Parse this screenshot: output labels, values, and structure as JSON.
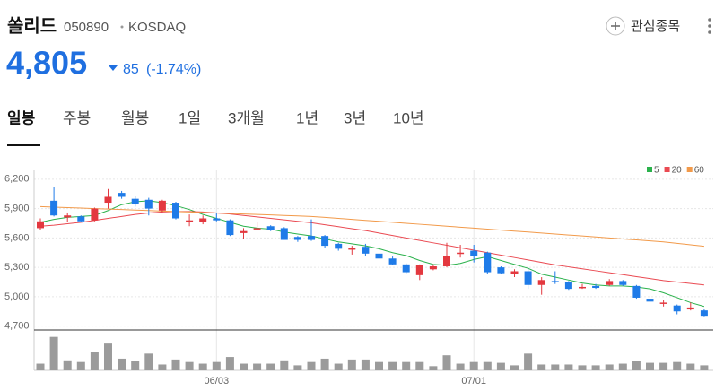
{
  "header": {
    "name": "쏠리드",
    "code": "050890",
    "market": "KOSDAQ",
    "watch_button": "관심종목"
  },
  "price": {
    "value": "4,805",
    "change": "85",
    "change_rate": "(-1.74%)"
  },
  "tabs": [
    "일봉",
    "주봉",
    "월봉",
    "1일",
    "3개월",
    "1년",
    "3년",
    "10년"
  ],
  "chart_data": {
    "type": "candlestick",
    "categories": [
      null,
      null,
      null,
      null,
      null,
      null,
      null,
      null,
      null,
      null,
      null,
      null,
      null,
      "06/03",
      null,
      null,
      null,
      null,
      null,
      null,
      null,
      null,
      null,
      null,
      null,
      null,
      null,
      null,
      null,
      null,
      null,
      null,
      "07/01",
      null,
      null,
      null,
      null,
      null,
      null,
      null,
      null,
      null,
      null,
      null,
      null,
      null,
      null,
      null,
      null,
      null
    ],
    "open": [
      5700,
      5980,
      5810,
      5820,
      5780,
      5960,
      6060,
      6000,
      5990,
      5880,
      5960,
      5760,
      5760,
      5800,
      5780,
      5650,
      5690,
      5720,
      5700,
      5610,
      5620,
      5620,
      5540,
      5480,
      5510,
      5440,
      5390,
      5330,
      5220,
      5280,
      5310,
      5440,
      5470,
      5450,
      5300,
      5230,
      5260,
      5120,
      5160,
      5150,
      5090,
      5110,
      5120,
      5160,
      5110,
      4980,
      4930,
      4910,
      4870,
      4860
    ],
    "high": [
      5800,
      6120,
      5860,
      5830,
      5910,
      6100,
      6080,
      6030,
      6010,
      5990,
      5970,
      5840,
      5830,
      5850,
      5790,
      5700,
      5760,
      5730,
      5710,
      5620,
      5790,
      5630,
      5550,
      5520,
      5540,
      5460,
      5410,
      5340,
      5330,
      5330,
      5550,
      5530,
      5530,
      5460,
      5310,
      5280,
      5300,
      5200,
      5260,
      5160,
      5130,
      5130,
      5180,
      5170,
      5120,
      5000,
      4970,
      4920,
      4940,
      4870
    ],
    "low": [
      5680,
      5820,
      5760,
      5760,
      5770,
      5900,
      6000,
      5920,
      5830,
      5860,
      5790,
      5720,
      5740,
      5770,
      5620,
      5590,
      5680,
      5670,
      5580,
      5560,
      5570,
      5500,
      5470,
      5430,
      5420,
      5370,
      5320,
      5240,
      5170,
      5270,
      5300,
      5400,
      5350,
      5230,
      5230,
      5200,
      5080,
      5020,
      5130,
      5070,
      5080,
      5080,
      5110,
      5110,
      4980,
      4880,
      4900,
      4820,
      4860,
      4800
    ],
    "close": [
      5770,
      5830,
      5830,
      5770,
      5900,
      6020,
      6020,
      5950,
      5900,
      5980,
      5800,
      5780,
      5800,
      5780,
      5630,
      5670,
      5700,
      5680,
      5580,
      5580,
      5580,
      5520,
      5490,
      5500,
      5440,
      5390,
      5330,
      5250,
      5320,
      5310,
      5420,
      5450,
      5420,
      5250,
      5240,
      5260,
      5120,
      5170,
      5150,
      5080,
      5100,
      5090,
      5160,
      5120,
      4990,
      4950,
      4940,
      4850,
      4890,
      4805
    ],
    "up_color": "#e3383f",
    "down_color": "#1f7be8",
    "volume": [
      8,
      40,
      12,
      10,
      22,
      32,
      14,
      11,
      20,
      7,
      13,
      10,
      8,
      10,
      16,
      8,
      8,
      8,
      12,
      6,
      10,
      14,
      8,
      13,
      13,
      10,
      10,
      10,
      10,
      5,
      18,
      8,
      10,
      10,
      9,
      6,
      20,
      7,
      7,
      7,
      6,
      6,
      7,
      8,
      11,
      9,
      9,
      10,
      8,
      6
    ],
    "volume_color": "#9b9b9b",
    "vlim": [
      0,
      45
    ],
    "series": [
      {
        "name": "5",
        "color": "#2bb24c",
        "values": [
          5760,
          5790,
          5810,
          5820,
          5830,
          5880,
          5940,
          5970,
          5980,
          5960,
          5930,
          5890,
          5840,
          5800,
          5760,
          5720,
          5700,
          5690,
          5660,
          5640,
          5620,
          5590,
          5560,
          5540,
          5520,
          5490,
          5450,
          5420,
          5370,
          5330,
          5320,
          5340,
          5380,
          5410,
          5370,
          5330,
          5290,
          5230,
          5200,
          5170,
          5140,
          5120,
          5110,
          5110,
          5100,
          5080,
          5040,
          4990,
          4940,
          4900
        ]
      },
      {
        "name": "20",
        "color": "#ea4a52",
        "values": [
          5720,
          5730,
          5745,
          5760,
          5780,
          5800,
          5820,
          5840,
          5855,
          5865,
          5870,
          5870,
          5865,
          5855,
          5845,
          5830,
          5815,
          5800,
          5785,
          5770,
          5755,
          5735,
          5715,
          5695,
          5675,
          5650,
          5625,
          5600,
          5575,
          5550,
          5525,
          5500,
          5475,
          5450,
          5425,
          5400,
          5375,
          5350,
          5325,
          5305,
          5285,
          5265,
          5245,
          5225,
          5205,
          5185,
          5165,
          5150,
          5135,
          5120
        ]
      },
      {
        "name": "60",
        "color": "#f29a4a",
        "values": [
          5920,
          5915,
          5910,
          5905,
          5900,
          5895,
          5890,
          5885,
          5880,
          5875,
          5870,
          5865,
          5860,
          5855,
          5850,
          5845,
          5840,
          5835,
          5830,
          5825,
          5820,
          5810,
          5800,
          5790,
          5780,
          5770,
          5760,
          5750,
          5740,
          5730,
          5720,
          5710,
          5700,
          5690,
          5680,
          5670,
          5660,
          5650,
          5640,
          5630,
          5620,
          5610,
          5600,
          5590,
          5580,
          5570,
          5560,
          5545,
          5530,
          5515
        ]
      }
    ],
    "ylim": [
      4660,
      6290
    ],
    "yticks": [
      {
        "value": 6200,
        "label": "6,200"
      },
      {
        "value": 5900,
        "label": "5,900"
      },
      {
        "value": 5600,
        "label": "5,600"
      },
      {
        "value": 5300,
        "label": "5,300"
      },
      {
        "value": 5000,
        "label": "5,000"
      },
      {
        "value": 4700,
        "label": "4,700"
      }
    ],
    "grid": true
  }
}
